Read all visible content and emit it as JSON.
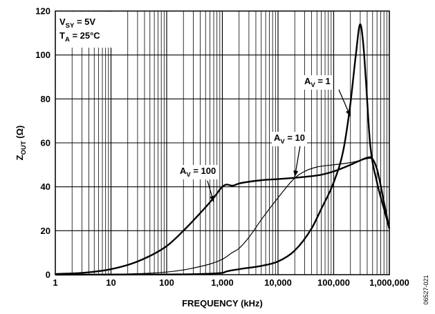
{
  "chart_data": {
    "type": "line",
    "x_scale": "log",
    "xlim": [
      1,
      1000000
    ],
    "ylim": [
      0,
      120
    ],
    "grid": true,
    "xlabel": "FREQUENCY (kHz)",
    "ylabel": {
      "main": "Z",
      "sub": "OUT",
      "rest": " (Ω)"
    },
    "x_ticks": [
      {
        "value": 1,
        "label": "1"
      },
      {
        "value": 10,
        "label": "10"
      },
      {
        "value": 100,
        "label": "100"
      },
      {
        "value": 1000,
        "label": "1,000"
      },
      {
        "value": 10000,
        "label": "10,000"
      },
      {
        "value": 100000,
        "label": "100,000"
      },
      {
        "value": 1000000,
        "label": "1,000,000"
      }
    ],
    "y_ticks": [
      {
        "value": 0,
        "label": "0"
      },
      {
        "value": 20,
        "label": "20"
      },
      {
        "value": 40,
        "label": "40"
      },
      {
        "value": 60,
        "label": "60"
      },
      {
        "value": 80,
        "label": "80"
      },
      {
        "value": 100,
        "label": "100"
      },
      {
        "value": 120,
        "label": "120"
      }
    ],
    "conditions": [
      {
        "main": "V",
        "sub": "SY",
        "rest": " = 5V"
      },
      {
        "main": "T",
        "sub": "A",
        "rest": " = 25°C"
      }
    ],
    "series": [
      {
        "name": "AV = 100",
        "label": {
          "main": "A",
          "sub": "V",
          "rest": " = 100"
        },
        "x": [
          1,
          3,
          10,
          30,
          100,
          200,
          400,
          700,
          1000,
          1200,
          1500,
          2000,
          5000,
          10000,
          30000,
          60000,
          100000,
          200000,
          300000,
          450000,
          600000,
          800000,
          1000000
        ],
        "y": [
          0.3,
          0.8,
          2.5,
          6,
          13,
          20,
          28,
          35,
          40,
          41,
          40.5,
          41.5,
          43,
          43.5,
          44.5,
          45.5,
          47,
          50,
          52,
          53.5,
          48,
          33,
          21
        ]
      },
      {
        "name": "AV = 10",
        "label": {
          "main": "A",
          "sub": "V",
          "rest": " = 10"
        },
        "x": [
          1,
          10,
          100,
          300,
          1000,
          1500,
          2000,
          3000,
          5000,
          10000,
          20000,
          30000,
          50000,
          100000,
          200000,
          300000,
          450000,
          600000,
          800000,
          1000000
        ],
        "y": [
          0.05,
          0.2,
          1.2,
          3,
          7,
          10,
          12,
          17,
          25,
          35,
          44,
          47,
          49,
          50,
          51,
          52,
          53,
          48,
          33,
          21
        ]
      },
      {
        "name": "AV = 1",
        "label": {
          "main": "A",
          "sub": "V",
          "rest": " = 1"
        },
        "x": [
          1,
          100,
          1000,
          1200,
          2000,
          5000,
          10000,
          20000,
          40000,
          60000,
          100000,
          150000,
          200000,
          250000,
          300000,
          340000,
          380000,
          450000,
          600000,
          800000,
          1000000
        ],
        "y": [
          0,
          0.1,
          0.8,
          1.5,
          2.5,
          4,
          6,
          11,
          21,
          30,
          42,
          57,
          78,
          100,
          114,
          105,
          88,
          60,
          42,
          30,
          21
        ]
      }
    ],
    "annotations": [
      {
        "series": "AV = 1",
        "arrow_to": {
          "x": 200000,
          "y": 72
        }
      },
      {
        "series": "AV = 10",
        "arrow_to": {
          "x": 20000,
          "y": 44.5
        }
      },
      {
        "series": "AV = 100",
        "arrow_to": {
          "x": 700,
          "y": 33
        }
      }
    ],
    "figure_id": "06527-021"
  }
}
